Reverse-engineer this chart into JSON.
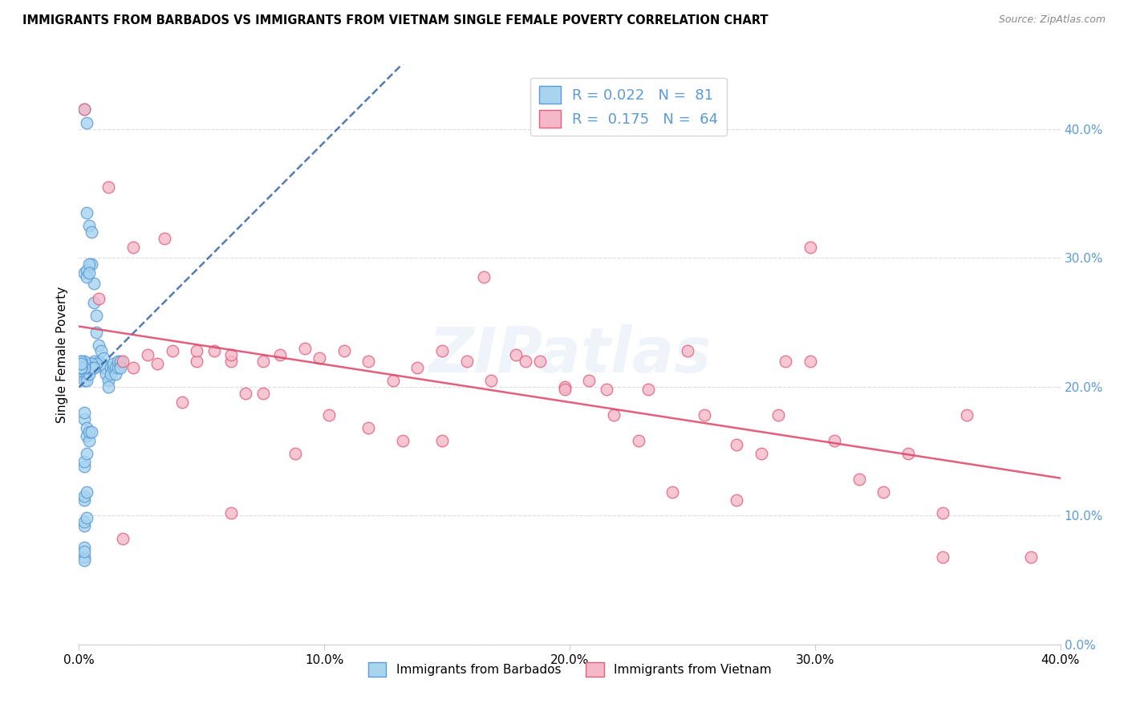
{
  "title": "IMMIGRANTS FROM BARBADOS VS IMMIGRANTS FROM VIETNAM SINGLE FEMALE POVERTY CORRELATION CHART",
  "source": "Source: ZipAtlas.com",
  "ylabel": "Single Female Poverty",
  "xlim": [
    0.0,
    0.4
  ],
  "ylim": [
    0.0,
    0.45
  ],
  "ytick_labels": [
    "0.0%",
    "10.0%",
    "20.0%",
    "30.0%",
    "40.0%"
  ],
  "ytick_vals": [
    0.0,
    0.1,
    0.2,
    0.3,
    0.4
  ],
  "xtick_labels": [
    "0.0%",
    "10.0%",
    "20.0%",
    "30.0%",
    "40.0%"
  ],
  "xtick_vals": [
    0.0,
    0.1,
    0.2,
    0.3,
    0.4
  ],
  "right_ytick_color": "#5b9bd5",
  "barbados_fill": "#a8d4f0",
  "vietnam_fill": "#f5b8c8",
  "barbados_edge": "#5b9bd5",
  "vietnam_edge": "#e06080",
  "barbados_line_color": "#3366aa",
  "vietnam_line_color": "#dd4466",
  "watermark": "ZIPatlas",
  "barbados_x": [
    0.002,
    0.003,
    0.003,
    0.004,
    0.005,
    0.005,
    0.006,
    0.006,
    0.007,
    0.007,
    0.008,
    0.008,
    0.009,
    0.009,
    0.01,
    0.01,
    0.011,
    0.011,
    0.012,
    0.012,
    0.013,
    0.013,
    0.014,
    0.014,
    0.015,
    0.015,
    0.016,
    0.016,
    0.017,
    0.017,
    0.002,
    0.003,
    0.003,
    0.004,
    0.004,
    0.005,
    0.005,
    0.006,
    0.006,
    0.007,
    0.002,
    0.002,
    0.003,
    0.003,
    0.003,
    0.004,
    0.004,
    0.005,
    0.005,
    0.006,
    0.002,
    0.002,
    0.003,
    0.003,
    0.004,
    0.004,
    0.005,
    0.002,
    0.002,
    0.003,
    0.002,
    0.002,
    0.003,
    0.002,
    0.002,
    0.003,
    0.002,
    0.002,
    0.002,
    0.002,
    0.002,
    0.002,
    0.002,
    0.002,
    0.001,
    0.001,
    0.001,
    0.001,
    0.001,
    0.001,
    0.001
  ],
  "barbados_y": [
    0.415,
    0.405,
    0.335,
    0.325,
    0.32,
    0.295,
    0.28,
    0.265,
    0.255,
    0.242,
    0.232,
    0.22,
    0.228,
    0.218,
    0.215,
    0.222,
    0.215,
    0.21,
    0.205,
    0.2,
    0.215,
    0.21,
    0.215,
    0.218,
    0.215,
    0.21,
    0.215,
    0.22,
    0.22,
    0.215,
    0.288,
    0.29,
    0.285,
    0.295,
    0.288,
    0.215,
    0.218,
    0.22,
    0.215,
    0.218,
    0.21,
    0.205,
    0.215,
    0.21,
    0.205,
    0.21,
    0.215,
    0.218,
    0.215,
    0.215,
    0.175,
    0.18,
    0.162,
    0.168,
    0.158,
    0.165,
    0.165,
    0.138,
    0.142,
    0.148,
    0.112,
    0.115,
    0.118,
    0.092,
    0.095,
    0.098,
    0.068,
    0.065,
    0.075,
    0.072,
    0.215,
    0.218,
    0.22,
    0.215,
    0.215,
    0.22,
    0.215,
    0.218,
    0.22,
    0.215,
    0.218
  ],
  "vietnam_x": [
    0.002,
    0.008,
    0.012,
    0.018,
    0.022,
    0.028,
    0.032,
    0.038,
    0.042,
    0.048,
    0.055,
    0.062,
    0.068,
    0.075,
    0.082,
    0.092,
    0.098,
    0.108,
    0.118,
    0.128,
    0.138,
    0.148,
    0.158,
    0.168,
    0.178,
    0.188,
    0.198,
    0.208,
    0.218,
    0.228,
    0.242,
    0.255,
    0.268,
    0.278,
    0.288,
    0.298,
    0.308,
    0.318,
    0.328,
    0.338,
    0.352,
    0.362,
    0.022,
    0.035,
    0.048,
    0.062,
    0.075,
    0.088,
    0.102,
    0.118,
    0.132,
    0.148,
    0.165,
    0.182,
    0.198,
    0.215,
    0.232,
    0.248,
    0.268,
    0.285,
    0.352,
    0.388,
    0.018,
    0.062,
    0.298
  ],
  "vietnam_y": [
    0.415,
    0.268,
    0.355,
    0.22,
    0.215,
    0.225,
    0.218,
    0.228,
    0.188,
    0.22,
    0.228,
    0.22,
    0.195,
    0.195,
    0.225,
    0.23,
    0.222,
    0.228,
    0.22,
    0.205,
    0.215,
    0.228,
    0.22,
    0.205,
    0.225,
    0.22,
    0.2,
    0.205,
    0.178,
    0.158,
    0.118,
    0.178,
    0.155,
    0.148,
    0.22,
    0.22,
    0.158,
    0.128,
    0.118,
    0.148,
    0.102,
    0.178,
    0.308,
    0.315,
    0.228,
    0.225,
    0.22,
    0.148,
    0.178,
    0.168,
    0.158,
    0.158,
    0.285,
    0.22,
    0.198,
    0.198,
    0.198,
    0.228,
    0.112,
    0.178,
    0.068,
    0.068,
    0.082,
    0.102,
    0.308
  ]
}
